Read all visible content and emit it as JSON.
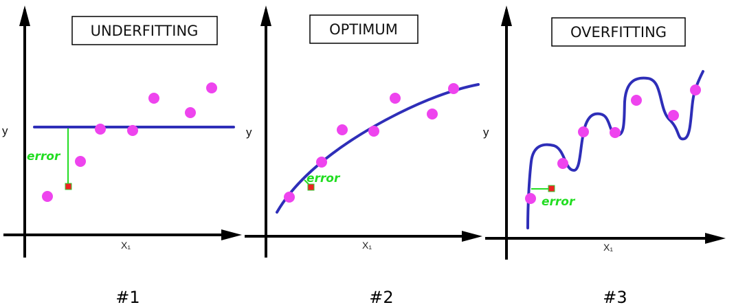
{
  "colors": {
    "axis": "#000000",
    "curve": "#2e2eb8",
    "point": "#ee44ee",
    "error_line": "#22dd22",
    "error_text": "#22dd22",
    "test_point": "#ee2222"
  },
  "panels": [
    {
      "title": "UNDERFITTING",
      "y_label": "y",
      "x_label": "X₁",
      "error_label": "error",
      "caption": "#1"
    },
    {
      "title": "OPTIMUM",
      "y_label": "y",
      "x_label": "X₁",
      "error_label": "error",
      "caption": "#2"
    },
    {
      "title": "OVERFITTING",
      "y_label": "y",
      "x_label": "X₁",
      "error_label": "error",
      "caption": "#3"
    }
  ]
}
